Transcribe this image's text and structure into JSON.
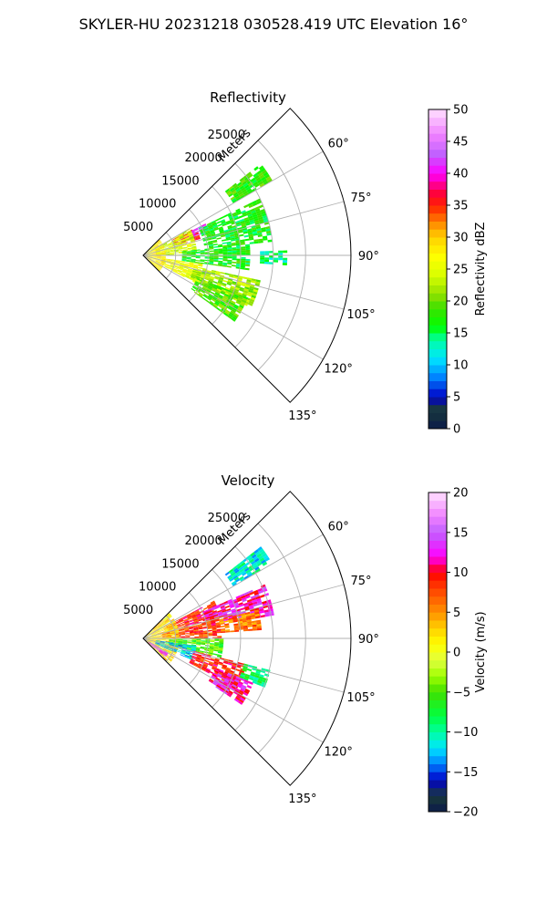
{
  "suptitle": "SKYLER-HU  20231218  030528.419 UTC Elevation 16°",
  "chart_data": [
    {
      "type": "ppi-sector",
      "title": "Reflectivity",
      "range_label": "Meters",
      "range_ticks": [
        "5000",
        "10000",
        "15000",
        "20000",
        "25000"
      ],
      "range_values": [
        5000,
        10000,
        15000,
        20000,
        25000
      ],
      "range_max": 32000,
      "azimuth_ticks": [
        "60°",
        "75°",
        "90°",
        "105°",
        "120°",
        "135°"
      ],
      "azimuth_values": [
        60,
        75,
        90,
        105,
        120,
        135
      ],
      "azimuth_range": [
        45,
        135
      ],
      "grid": true,
      "colorbar": {
        "label": "Reflectivity dBZ",
        "ticks": [
          "0",
          "5",
          "10",
          "15",
          "20",
          "25",
          "30",
          "35",
          "40",
          "45",
          "50"
        ],
        "range": [
          0,
          50
        ]
      },
      "echo_regions": [
        {
          "az": [
            52,
            60
          ],
          "r": [
            16000,
            23000
          ],
          "value": 18
        },
        {
          "az": [
            62,
            74
          ],
          "r": [
            5000,
            9000
          ],
          "value": 36
        },
        {
          "az": [
            63,
            70
          ],
          "r": [
            8000,
            10500
          ],
          "value": 42
        },
        {
          "az": [
            60,
            90
          ],
          "r": [
            2000,
            8000
          ],
          "value": 24
        },
        {
          "az": [
            64,
            84
          ],
          "r": [
            9500,
            20000
          ],
          "value": 17
        },
        {
          "az": [
            84,
            98
          ],
          "r": [
            6000,
            16000
          ],
          "value": 17
        },
        {
          "az": [
            88,
            94
          ],
          "r": [
            18000,
            22000
          ],
          "value": 14
        },
        {
          "az": [
            98,
            118
          ],
          "r": [
            3000,
            9000
          ],
          "value": 26
        },
        {
          "az": [
            102,
            116
          ],
          "r": [
            8000,
            18000
          ],
          "value": 22
        },
        {
          "az": [
            112,
            126
          ],
          "r": [
            9000,
            17000
          ],
          "value": 19
        },
        {
          "az": [
            46,
            134
          ],
          "r": [
            0,
            3000
          ],
          "value": 28
        }
      ]
    },
    {
      "type": "ppi-sector",
      "title": "Velocity",
      "range_label": "Meters",
      "range_ticks": [
        "5000",
        "10000",
        "15000",
        "20000",
        "25000"
      ],
      "range_values": [
        5000,
        10000,
        15000,
        20000,
        25000
      ],
      "range_max": 32000,
      "azimuth_ticks": [
        "60°",
        "75°",
        "90°",
        "105°",
        "120°",
        "135°"
      ],
      "azimuth_values": [
        60,
        75,
        90,
        105,
        120,
        135
      ],
      "azimuth_range": [
        45,
        135
      ],
      "grid": true,
      "colorbar": {
        "label": "Velocity (m/s)",
        "ticks": [
          "−20",
          "−15",
          "−10",
          "−5",
          "0",
          "5",
          "10",
          "15",
          "20"
        ],
        "range": [
          -20,
          20
        ]
      },
      "echo_regions": [
        {
          "az": [
            52,
            60
          ],
          "r": [
            16000,
            23000
          ],
          "value": -11
        },
        {
          "az": [
            62,
            74
          ],
          "r": [
            4000,
            12000
          ],
          "value": 9
        },
        {
          "az": [
            66,
            80
          ],
          "r": [
            10000,
            20000
          ],
          "value": 12
        },
        {
          "az": [
            74,
            90
          ],
          "r": [
            3000,
            12000
          ],
          "value": 8
        },
        {
          "az": [
            76,
            86
          ],
          "r": [
            12000,
            18000
          ],
          "value": 6
        },
        {
          "az": [
            46,
            134
          ],
          "r": [
            0,
            5000
          ],
          "value": 2
        },
        {
          "az": [
            90,
            104
          ],
          "r": [
            4000,
            12000
          ],
          "value": -5
        },
        {
          "az": [
            98,
            114
          ],
          "r": [
            2000,
            8000
          ],
          "value": -12
        },
        {
          "az": [
            104,
            118
          ],
          "r": [
            8000,
            16000
          ],
          "value": 9
        },
        {
          "az": [
            112,
            124
          ],
          "r": [
            12000,
            18000
          ],
          "value": 12
        },
        {
          "az": [
            104,
            112
          ],
          "r": [
            16000,
            20000
          ],
          "value": -8
        },
        {
          "az": [
            120,
            130
          ],
          "r": [
            1000,
            4000
          ],
          "value": 14
        }
      ]
    }
  ]
}
